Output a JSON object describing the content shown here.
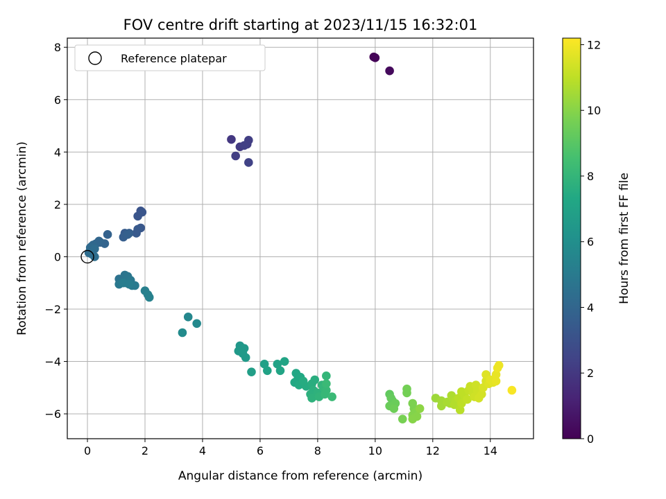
{
  "chart_data": {
    "type": "scatter",
    "title": "FOV centre drift starting at 2023/11/15 16:32:01",
    "xlabel": "Angular distance from reference (arcmin)",
    "ylabel": "Rotation from reference (arcmin)",
    "xlim": [
      -0.7,
      15.5
    ],
    "ylim": [
      -6.95,
      8.35
    ],
    "xticks": [
      0,
      2,
      4,
      6,
      8,
      10,
      12,
      14
    ],
    "yticks": [
      -6,
      -4,
      -2,
      0,
      2,
      4,
      6,
      8
    ],
    "xtick_labels": [
      "0",
      "2",
      "4",
      "6",
      "8",
      "10",
      "12",
      "14"
    ],
    "ytick_labels": [
      "−6",
      "−4",
      "−2",
      "0",
      "2",
      "4",
      "6",
      "8"
    ],
    "grid": true,
    "legend": {
      "location": "top-left",
      "entries": [
        {
          "label": "Reference platepar",
          "marker": "open-circle"
        }
      ]
    },
    "colorbar": {
      "label": "Hours from first FF file",
      "colormap": "viridis",
      "range": [
        0,
        12.2
      ],
      "ticks": [
        0,
        2,
        4,
        6,
        8,
        10,
        12
      ],
      "tick_labels": [
        "0",
        "2",
        "4",
        "6",
        "8",
        "10",
        "12"
      ]
    },
    "reference_point": {
      "x": 0,
      "y": 0
    },
    "points": [
      [
        9.95,
        7.63,
        0.05
      ],
      [
        10.0,
        7.6,
        0.1
      ],
      [
        10.5,
        7.1,
        0.3
      ],
      [
        5.0,
        4.48,
        2.0
      ],
      [
        5.3,
        4.2,
        2.1
      ],
      [
        5.15,
        3.85,
        2.2
      ],
      [
        5.55,
        4.3,
        2.2
      ],
      [
        5.6,
        4.45,
        2.25
      ],
      [
        5.45,
        4.25,
        2.3
      ],
      [
        5.6,
        3.6,
        2.4
      ],
      [
        1.85,
        1.75,
        3.1
      ],
      [
        1.75,
        1.55,
        3.2
      ],
      [
        1.9,
        1.7,
        3.2
      ],
      [
        1.85,
        1.1,
        3.3
      ],
      [
        1.7,
        0.9,
        3.4
      ],
      [
        1.75,
        1.05,
        3.4
      ],
      [
        1.3,
        0.9,
        3.5
      ],
      [
        1.45,
        0.9,
        3.6
      ],
      [
        1.25,
        0.75,
        3.6
      ],
      [
        1.4,
        0.85,
        3.7
      ],
      [
        0.7,
        0.85,
        3.8
      ],
      [
        0.6,
        0.5,
        3.9
      ],
      [
        0.45,
        0.55,
        3.9
      ],
      [
        0.3,
        0.5,
        4.0
      ],
      [
        0.4,
        0.6,
        4.0
      ],
      [
        0.2,
        0.45,
        4.1
      ],
      [
        0.15,
        0.4,
        4.1
      ],
      [
        0.1,
        0.35,
        4.2
      ],
      [
        0.08,
        0.2,
        4.2
      ],
      [
        0.25,
        0.3,
        4.3
      ],
      [
        0.05,
        0.15,
        4.3
      ],
      [
        0.15,
        0.1,
        4.4
      ],
      [
        0.25,
        0.0,
        4.4
      ],
      [
        1.1,
        -0.85,
        4.6
      ],
      [
        1.2,
        -0.95,
        4.7
      ],
      [
        1.3,
        -0.7,
        4.7
      ],
      [
        1.4,
        -0.75,
        4.8
      ],
      [
        1.35,
        -1.0,
        4.8
      ],
      [
        1.5,
        -0.9,
        4.9
      ],
      [
        1.1,
        -1.05,
        4.9
      ],
      [
        1.55,
        -1.1,
        5.0
      ],
      [
        1.65,
        -1.1,
        5.0
      ],
      [
        1.25,
        -1.0,
        5.1
      ],
      [
        1.45,
        -1.05,
        5.1
      ],
      [
        2.0,
        -1.3,
        5.2
      ],
      [
        2.1,
        -1.45,
        5.3
      ],
      [
        2.15,
        -1.55,
        5.3
      ],
      [
        3.5,
        -2.3,
        5.6
      ],
      [
        3.8,
        -2.55,
        5.7
      ],
      [
        3.3,
        -2.9,
        5.8
      ],
      [
        5.3,
        -3.4,
        6.4
      ],
      [
        5.45,
        -3.5,
        6.5
      ],
      [
        5.25,
        -3.6,
        6.5
      ],
      [
        5.5,
        -3.85,
        6.6
      ],
      [
        5.4,
        -3.7,
        6.6
      ],
      [
        5.7,
        -4.4,
        6.8
      ],
      [
        6.15,
        -4.1,
        6.9
      ],
      [
        6.25,
        -4.35,
        7.0
      ],
      [
        6.6,
        -4.1,
        7.0
      ],
      [
        6.7,
        -4.35,
        7.1
      ],
      [
        6.85,
        -4.0,
        7.1
      ],
      [
        7.25,
        -4.45,
        7.2
      ],
      [
        7.3,
        -4.7,
        7.2
      ],
      [
        7.2,
        -4.8,
        7.3
      ],
      [
        7.4,
        -4.6,
        7.3
      ],
      [
        7.5,
        -4.85,
        7.4
      ],
      [
        7.35,
        -4.9,
        7.4
      ],
      [
        7.6,
        -4.95,
        7.5
      ],
      [
        7.5,
        -4.75,
        7.5
      ],
      [
        7.8,
        -4.85,
        7.6
      ],
      [
        7.9,
        -4.7,
        7.6
      ],
      [
        7.85,
        -5.1,
        7.7
      ],
      [
        7.75,
        -5.25,
        7.7
      ],
      [
        7.8,
        -5.4,
        7.8
      ],
      [
        8.0,
        -5.2,
        7.8
      ],
      [
        8.05,
        -5.35,
        7.9
      ],
      [
        8.15,
        -4.9,
        7.9
      ],
      [
        8.2,
        -5.0,
        8.0
      ],
      [
        8.3,
        -4.55,
        8.0
      ],
      [
        8.3,
        -5.1,
        8.1
      ],
      [
        8.25,
        -5.25,
        8.1
      ],
      [
        8.5,
        -5.35,
        8.2
      ],
      [
        8.3,
        -4.85,
        8.2
      ],
      [
        10.5,
        -5.25,
        9.2
      ],
      [
        10.55,
        -5.4,
        9.3
      ],
      [
        10.6,
        -5.5,
        9.3
      ],
      [
        10.7,
        -5.6,
        9.4
      ],
      [
        10.5,
        -5.7,
        9.4
      ],
      [
        10.65,
        -5.8,
        9.5
      ],
      [
        11.1,
        -5.05,
        9.6
      ],
      [
        11.1,
        -5.2,
        9.6
      ],
      [
        10.95,
        -6.2,
        9.7
      ],
      [
        11.3,
        -5.6,
        9.8
      ],
      [
        11.35,
        -5.8,
        9.8
      ],
      [
        11.4,
        -5.95,
        9.9
      ],
      [
        11.3,
        -6.05,
        9.9
      ],
      [
        11.45,
        -6.1,
        10.0
      ],
      [
        11.3,
        -6.2,
        10.0
      ],
      [
        11.55,
        -5.8,
        10.1
      ],
      [
        12.1,
        -5.4,
        10.4
      ],
      [
        12.3,
        -5.5,
        10.5
      ],
      [
        12.3,
        -5.7,
        10.5
      ],
      [
        12.5,
        -5.55,
        10.6
      ],
      [
        12.6,
        -5.6,
        10.6
      ],
      [
        12.7,
        -5.4,
        10.7
      ],
      [
        12.65,
        -5.3,
        10.7
      ],
      [
        12.8,
        -5.5,
        10.8
      ],
      [
        12.75,
        -5.65,
        10.8
      ],
      [
        12.9,
        -5.4,
        10.9
      ],
      [
        12.95,
        -5.85,
        10.9
      ],
      [
        13.0,
        -5.6,
        11.0
      ],
      [
        13.0,
        -5.15,
        11.0
      ],
      [
        13.1,
        -5.3,
        11.0
      ],
      [
        13.2,
        -5.45,
        11.1
      ],
      [
        13.25,
        -5.1,
        11.1
      ],
      [
        13.3,
        -4.95,
        11.2
      ],
      [
        13.4,
        -5.2,
        11.2
      ],
      [
        13.45,
        -5.35,
        11.3
      ],
      [
        13.5,
        -4.9,
        11.3
      ],
      [
        13.55,
        -5.1,
        11.3
      ],
      [
        13.6,
        -5.4,
        11.4
      ],
      [
        13.7,
        -5.25,
        11.4
      ],
      [
        13.75,
        -5.0,
        11.5
      ],
      [
        13.85,
        -4.75,
        11.5
      ],
      [
        13.85,
        -4.5,
        11.6
      ],
      [
        13.95,
        -4.85,
        11.6
      ],
      [
        14.0,
        -4.7,
        11.7
      ],
      [
        14.1,
        -4.8,
        11.7
      ],
      [
        14.2,
        -4.5,
        11.8
      ],
      [
        14.2,
        -4.75,
        11.8
      ],
      [
        14.25,
        -4.25,
        11.9
      ],
      [
        14.3,
        -4.15,
        11.9
      ],
      [
        14.75,
        -5.1,
        12.1
      ]
    ]
  }
}
